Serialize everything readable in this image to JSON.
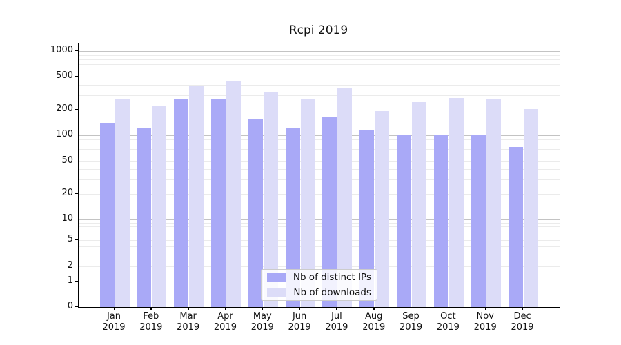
{
  "title": "Rcpi 2019",
  "chart_data": {
    "type": "bar",
    "title": "Rcpi 2019",
    "categories": [
      "Jan 2019",
      "Feb 2019",
      "Mar 2019",
      "Apr 2019",
      "May 2019",
      "Jun 2019",
      "Jul 2019",
      "Aug 2019",
      "Sep 2019",
      "Oct 2019",
      "Nov 2019",
      "Dec 2019"
    ],
    "series": [
      {
        "name": "Nb of distinct IPs",
        "color": "#a9a9f7",
        "values": [
          140,
          120,
          266,
          273,
          158,
          121,
          162,
          116,
          101,
          101,
          100,
          74
        ]
      },
      {
        "name": "Nb of downloads",
        "color": "#dcdcf8",
        "values": [
          265,
          220,
          380,
          440,
          330,
          272,
          370,
          191,
          249,
          277,
          265,
          203
        ]
      }
    ],
    "xlabel": "",
    "ylabel": "",
    "y_axis": {
      "scale": "log-like with zero baseline",
      "ticks": [
        0,
        1,
        2,
        5,
        10,
        20,
        50,
        100,
        200,
        500,
        1000
      ],
      "ylim": [
        0,
        1230
      ]
    },
    "grid": true,
    "legend_position": "lower center"
  }
}
